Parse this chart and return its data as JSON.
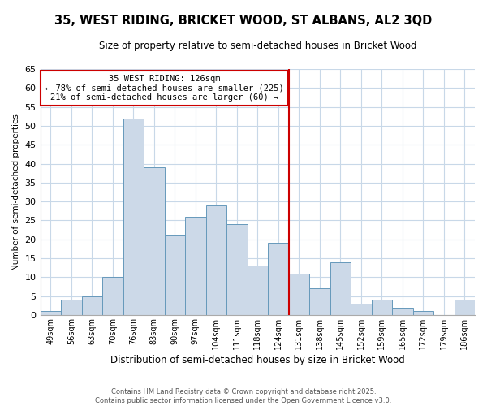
{
  "title": "35, WEST RIDING, BRICKET WOOD, ST ALBANS, AL2 3QD",
  "subtitle": "Size of property relative to semi-detached houses in Bricket Wood",
  "xlabel": "Distribution of semi-detached houses by size in Bricket Wood",
  "ylabel": "Number of semi-detached properties",
  "bar_labels": [
    "49sqm",
    "56sqm",
    "63sqm",
    "70sqm",
    "76sqm",
    "83sqm",
    "90sqm",
    "97sqm",
    "104sqm",
    "111sqm",
    "118sqm",
    "124sqm",
    "131sqm",
    "138sqm",
    "145sqm",
    "152sqm",
    "159sqm",
    "165sqm",
    "172sqm",
    "179sqm",
    "186sqm"
  ],
  "bar_values": [
    1,
    4,
    5,
    10,
    52,
    39,
    21,
    26,
    29,
    24,
    13,
    19,
    11,
    7,
    14,
    3,
    4,
    2,
    1,
    0,
    4
  ],
  "bar_color": "#ccd9e8",
  "bar_edge_color": "#6699bb",
  "vline_x": 11.5,
  "vline_color": "#cc0000",
  "ylim": [
    0,
    65
  ],
  "yticks": [
    0,
    5,
    10,
    15,
    20,
    25,
    30,
    35,
    40,
    45,
    50,
    55,
    60,
    65
  ],
  "annotation_title": "35 WEST RIDING: 126sqm",
  "annotation_line1": "← 78% of semi-detached houses are smaller (225)",
  "annotation_line2": "21% of semi-detached houses are larger (60) →",
  "footnote1": "Contains HM Land Registry data © Crown copyright and database right 2025.",
  "footnote2": "Contains public sector information licensed under the Open Government Licence v3.0.",
  "bg_color": "#ffffff",
  "grid_color": "#c8d8e8"
}
